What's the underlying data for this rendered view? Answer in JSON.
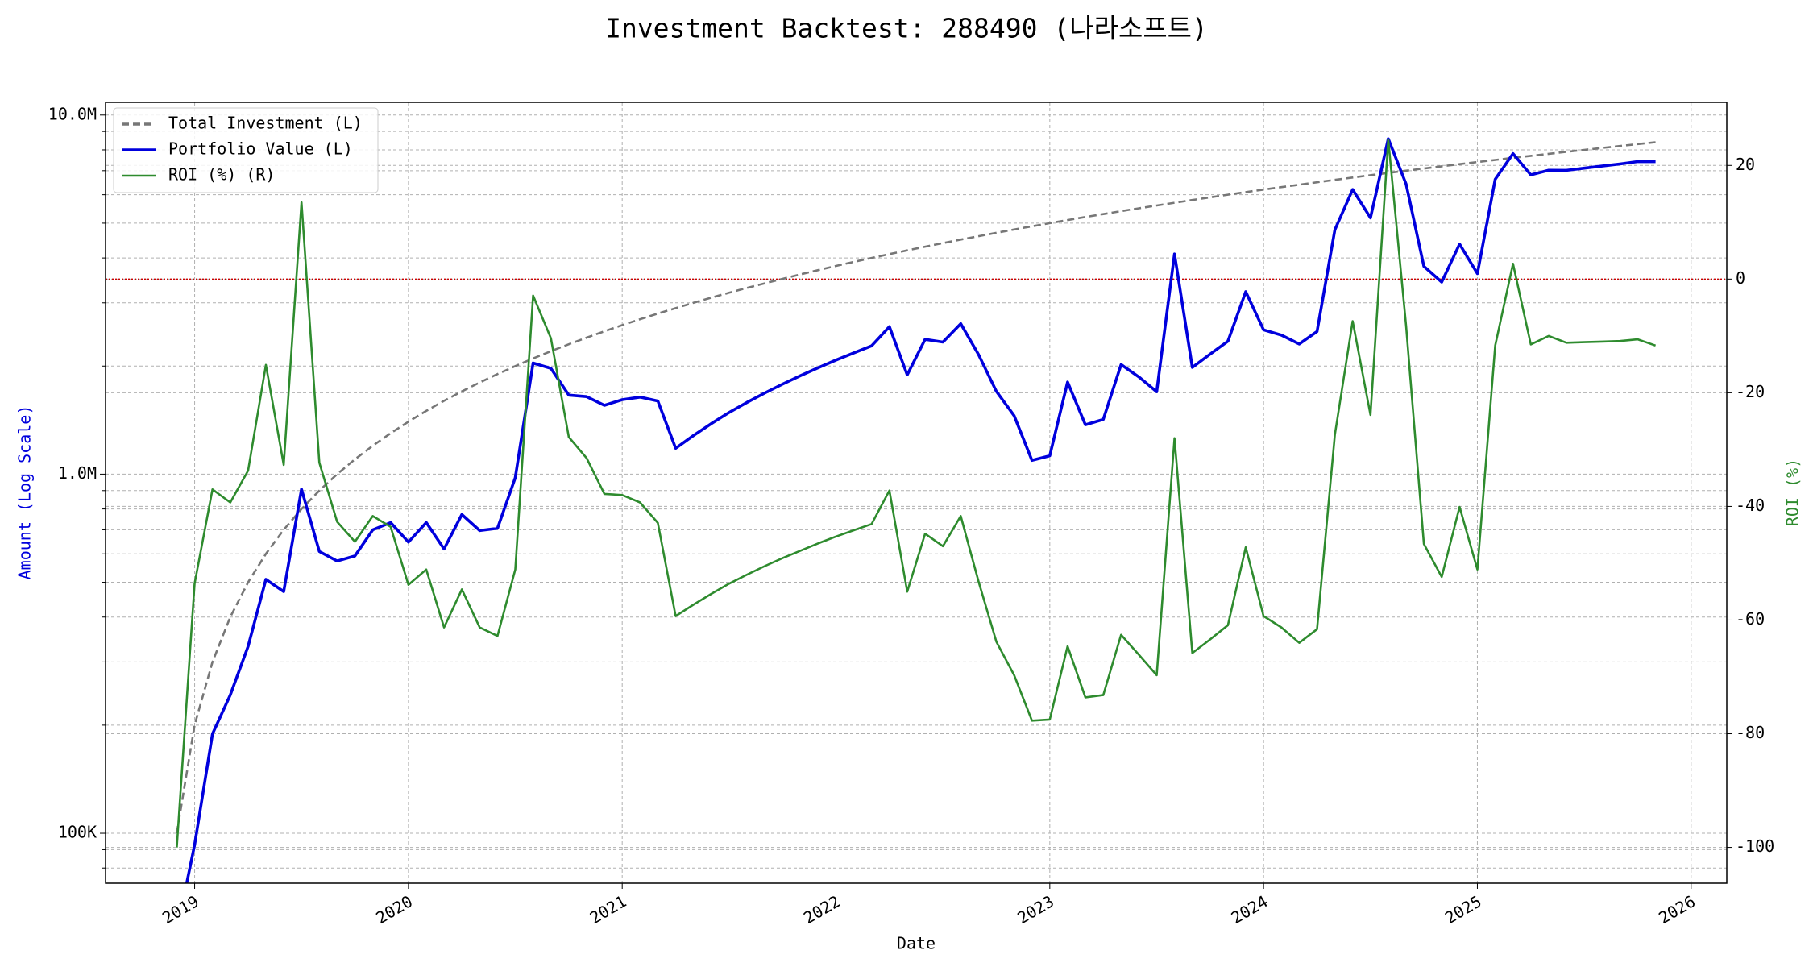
{
  "chart_data": {
    "type": "line",
    "title": "Investment Backtest: 288490 (나라소프트)",
    "xlabel": "Date",
    "ylabel": "Amount (Log Scale)",
    "y2label": "ROI (%)",
    "x": [
      "2018-12",
      "2019-01",
      "2019-02",
      "2019-03",
      "2019-04",
      "2019-05",
      "2019-06",
      "2019-07",
      "2019-08",
      "2019-09",
      "2019-10",
      "2019-11",
      "2019-12",
      "2020-01",
      "2020-02",
      "2020-03",
      "2020-04",
      "2020-05",
      "2020-06",
      "2020-07",
      "2020-08",
      "2020-09",
      "2020-10",
      "2020-11",
      "2020-12",
      "2021-01",
      "2021-02",
      "2021-03",
      "2021-04",
      "2021-05",
      "2021-06",
      "2021-07",
      "2021-08",
      "2021-09",
      "2021-10",
      "2021-11",
      "2021-12",
      "2022-01",
      "2022-02",
      "2022-03",
      "2022-04",
      "2022-05",
      "2022-06",
      "2022-07",
      "2022-08",
      "2022-09",
      "2022-10",
      "2022-11",
      "2022-12",
      "2023-01",
      "2023-02",
      "2023-03",
      "2023-04",
      "2023-05",
      "2023-06",
      "2023-07",
      "2023-08",
      "2023-09",
      "2023-10",
      "2023-11",
      "2023-12",
      "2024-01",
      "2024-02",
      "2024-03",
      "2024-04",
      "2024-05",
      "2024-06",
      "2024-07",
      "2024-08",
      "2024-09",
      "2024-10",
      "2024-11",
      "2024-12",
      "2025-01",
      "2025-02",
      "2025-03",
      "2025-04",
      "2025-05",
      "2025-06",
      "2025-07",
      "2025-08",
      "2025-09",
      "2025-10",
      "2025-11"
    ],
    "series": [
      {
        "name": "Total Investment (L)",
        "color": "#777777",
        "dash": "dashed",
        "axis": "y",
        "values": [
          100000,
          200000,
          300000,
          400000,
          500000,
          600000,
          700000,
          800000,
          900000,
          1000000,
          1100000,
          1200000,
          1300000,
          1400000,
          1500000,
          1600000,
          1700000,
          1800000,
          1900000,
          2000000,
          2100000,
          2200000,
          2300000,
          2400000,
          2500000,
          2600000,
          2700000,
          2800000,
          2900000,
          3000000,
          3100000,
          3200000,
          3300000,
          3400000,
          3500000,
          3600000,
          3700000,
          3800000,
          3900000,
          4000000,
          4100000,
          4200000,
          4300000,
          4400000,
          4500000,
          4600000,
          4700000,
          4800000,
          4900000,
          5000000,
          5100000,
          5200000,
          5300000,
          5400000,
          5500000,
          5600000,
          5700000,
          5800000,
          5900000,
          6000000,
          6100000,
          6200000,
          6300000,
          6400000,
          6500000,
          6600000,
          6700000,
          6800000,
          6900000,
          7000000,
          7100000,
          7200000,
          7300000,
          7400000,
          7500000,
          7600000,
          7700000,
          7800000,
          7900000,
          8000000,
          8100000,
          8200000,
          8300000,
          8400000
        ]
      },
      {
        "name": "Portfolio Value (L)",
        "color": "#0000dd",
        "dash": "solid",
        "axis": "y",
        "values": [
          0,
          92800,
          189000,
          242800,
          331500,
          509400,
          471100,
          908000,
          609300,
          573000,
          591800,
          699600,
          733200,
          646800,
          733500,
          619200,
          771800,
          696600,
          706800,
          978000,
          2039000,
          1971000,
          1660600,
          1644000,
          1555000,
          1612000,
          1638900,
          1598800,
          1180300,
          1281000,
          1382600,
          1484800,
          1584000,
          1683000,
          1781500,
          1879200,
          1979500,
          2078600,
          2176200,
          2276000,
          2574800,
          1890000,
          2373600,
          2332000,
          2623500,
          2152800,
          1701400,
          1454400,
          1092700,
          1125000,
          1805400,
          1372800,
          1420400,
          2019600,
          1864500,
          1696800,
          4104000,
          1983600,
          2159400,
          2346000,
          3220800,
          2523400,
          2438100,
          2304000,
          2496000,
          4791600,
          6204200,
          5174800,
          8590500,
          6426000,
          3791400,
          3427200,
          4372700,
          3618600,
          6622500,
          7805200,
          6814500,
          7020000,
          7015200,
          7112000,
          7209000,
          7306200,
          7420200,
          7417200
        ]
      },
      {
        "name": "ROI (%) (R)",
        "color": "#2e8b2e",
        "dash": "solid",
        "axis": "y2",
        "values": [
          -100,
          -53.6,
          -37,
          -39.3,
          -33.7,
          -15.1,
          -32.7,
          13.5,
          -32.3,
          -42.7,
          -46.2,
          -41.7,
          -43.6,
          -53.8,
          -51.1,
          -61.3,
          -54.6,
          -61.3,
          -62.8,
          -51.1,
          -2.9,
          -10.4,
          -27.8,
          -31.5,
          -37.8,
          -38,
          -39.3,
          -42.9,
          -59.3,
          -57.3,
          -55.4,
          -53.6,
          -52,
          -50.5,
          -49.1,
          -47.8,
          -46.5,
          -45.3,
          -44.2,
          -43.1,
          -37.2,
          -55,
          -44.8,
          -47,
          -41.7,
          -53.2,
          -63.8,
          -69.7,
          -77.7,
          -77.5,
          -64.6,
          -73.6,
          -73.2,
          -62.6,
          -66.1,
          -69.7,
          -28,
          -65.8,
          -63.4,
          -60.9,
          -47.2,
          -59.3,
          -61.3,
          -64,
          -61.6,
          -27.4,
          -7.4,
          -23.9,
          24.5,
          -8.2,
          -46.6,
          -52.4,
          -40.1,
          -51.1,
          -11.7,
          2.7,
          -11.5,
          -10,
          -11.2,
          -11.1,
          -11,
          -10.9,
          -10.6,
          -11.7
        ]
      }
    ],
    "xlim": [
      "2018-08",
      "2026-03"
    ],
    "xticks": [
      {
        "value": "2019-01",
        "label": "2019"
      },
      {
        "value": "2020-01",
        "label": "2020"
      },
      {
        "value": "2021-01",
        "label": "2021"
      },
      {
        "value": "2022-01",
        "label": "2022"
      },
      {
        "value": "2023-01",
        "label": "2023"
      },
      {
        "value": "2024-01",
        "label": "2024"
      },
      {
        "value": "2025-01",
        "label": "2025"
      },
      {
        "value": "2026-01",
        "label": "2026"
      }
    ],
    "ylim": [
      72600,
      10850000
    ],
    "log_y": true,
    "yticks": [
      {
        "value": 100000,
        "label": "100K"
      },
      {
        "value": 1000000,
        "label": "1.0M"
      },
      {
        "value": 10000000,
        "label": "10.0M"
      }
    ],
    "yminorticks": [
      80000,
      90000,
      200000,
      300000,
      400000,
      500000,
      600000,
      700000,
      800000,
      900000,
      2000000,
      3000000,
      4000000,
      5000000,
      6000000,
      7000000,
      8000000,
      9000000
    ],
    "y2lim": [
      -106.3,
      31.1
    ],
    "y2ticks": [
      -100,
      -80,
      -60,
      -40,
      -20,
      0,
      20
    ],
    "hline": {
      "value": 0,
      "axis": "y2",
      "color": "#cc0000"
    },
    "ylabel_color": "#0000dd",
    "y2label_color": "#2e8b2e",
    "grid": true,
    "legend": "upper left"
  }
}
